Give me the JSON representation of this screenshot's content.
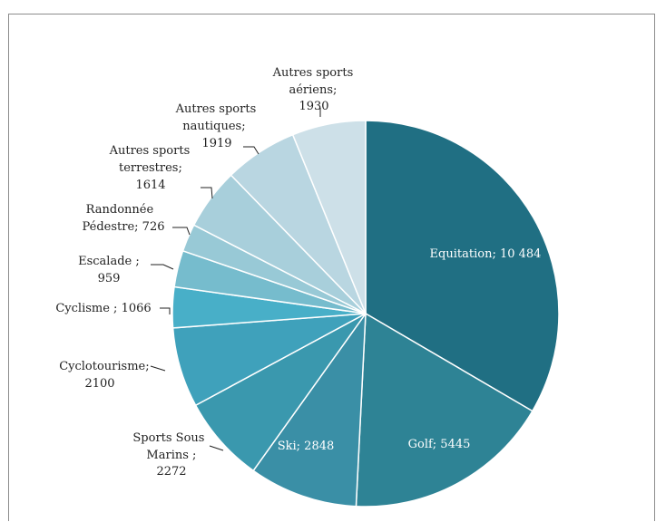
{
  "chart_data": {
    "type": "pie",
    "title": "",
    "slices": [
      {
        "label": "Equitation",
        "value": 10484,
        "text": "Equitation; 10 484",
        "color": "#206f83"
      },
      {
        "label": "Golf",
        "value": 5445,
        "text": "Golf; 5445",
        "color": "#2e8395"
      },
      {
        "label": "Ski",
        "value": 2848,
        "text": "Ski; 2848",
        "color": "#3a8fa6"
      },
      {
        "label": "Sports Sous Marins",
        "value": 2272,
        "text": "Sports Sous Marins ; 2272",
        "color": "#3a98ae"
      },
      {
        "label": "Cyclotourisme",
        "value": 2100,
        "text": "Cyclotourisme; 2100",
        "color": "#3fa1bb"
      },
      {
        "label": "Cyclisme",
        "value": 1066,
        "text": "Cyclisme ; 1066",
        "color": "#48afc8"
      },
      {
        "label": "Escalade",
        "value": 959,
        "text": "Escalade ; 959",
        "color": "#76bccd"
      },
      {
        "label": "Randonnée Pédestre",
        "value": 726,
        "text": "Randonnée Pédestre; 726",
        "color": "#98c9d6"
      },
      {
        "label": "Autres sports terrestres",
        "value": 1614,
        "text": "Autres sports terrestres; 1614",
        "color": "#a8cfdb"
      },
      {
        "label": "Autres sports nautiques",
        "value": 1919,
        "text": "Autres sports nautiques; 1919",
        "color": "#b9d6e1"
      },
      {
        "label": "Autres sports aériens",
        "value": 1930,
        "text": "Autres sports aériens; 1930",
        "color": "#cde0e8"
      }
    ]
  },
  "labels": {
    "equitation": "Equitation; 10 484",
    "golf": "Golf; 5445",
    "ski": "Ski; 2848",
    "sports_sous_marins": [
      "Sports Sous",
      "Marins ;",
      "2272"
    ],
    "cyclotourisme": [
      "Cyclotourisme;",
      "2100"
    ],
    "cyclisme": "Cyclisme ; 1066",
    "escalade": [
      "Escalade ;",
      "959"
    ],
    "randonnee": [
      "Randonnée",
      "Pédestre; 726"
    ],
    "autres_terrestres": [
      "Autres sports",
      "terrestres;",
      "1614"
    ],
    "autres_nautiques": [
      "Autres sports",
      "nautiques;",
      "1919"
    ],
    "autres_aeriens": [
      "Autres sports",
      "aériens;",
      "1930"
    ]
  }
}
